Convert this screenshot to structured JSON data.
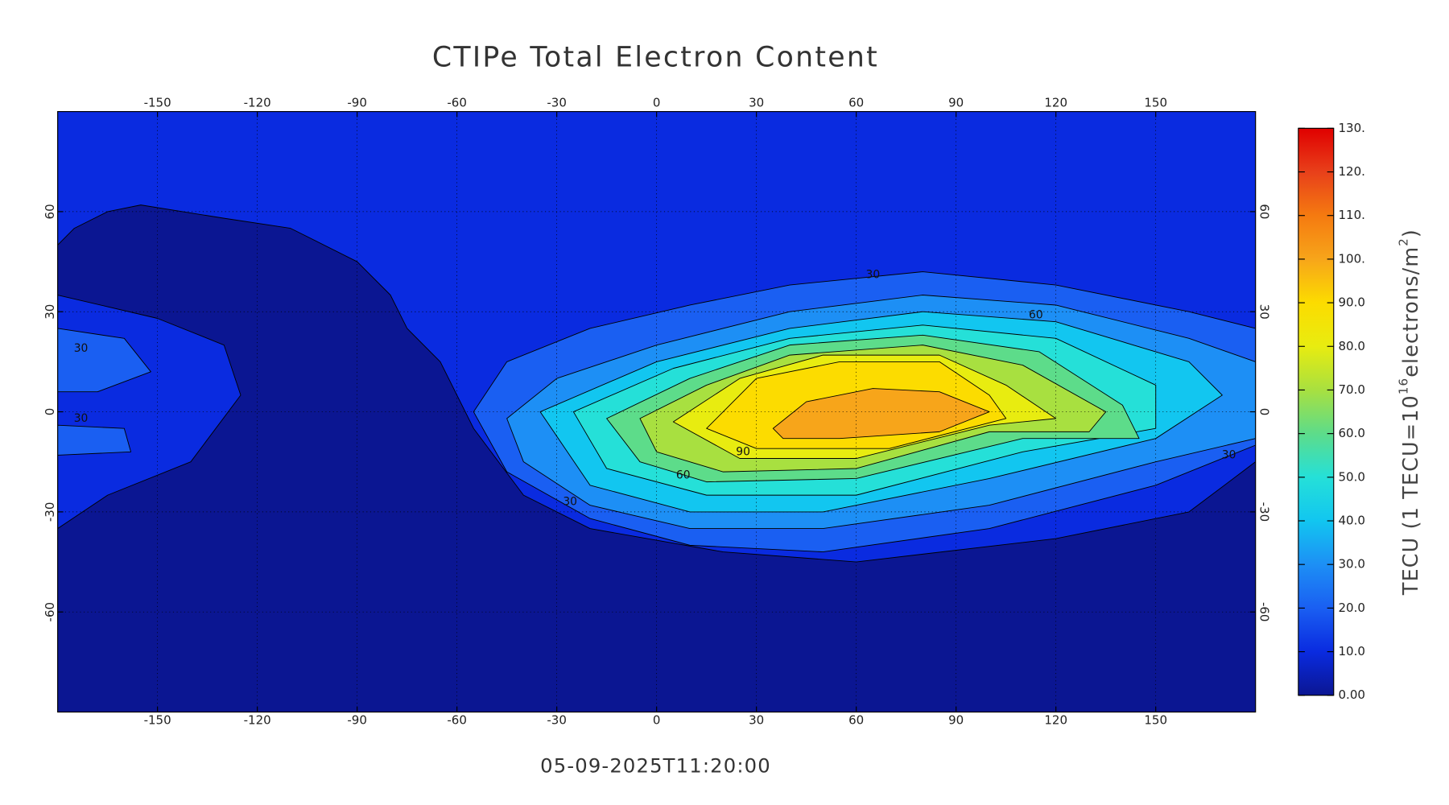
{
  "chart_data": {
    "type": "contour-map",
    "title": "CTIPe Total Electron Content",
    "subtitle": "05-09-2025T11:20:00",
    "xlim": [
      -180,
      180
    ],
    "ylim": [
      -90,
      90
    ],
    "xticks": [
      -150,
      -120,
      -90,
      -60,
      -30,
      0,
      30,
      60,
      90,
      120,
      150
    ],
    "yticks": [
      -60,
      -30,
      0,
      30,
      60
    ],
    "grid": true,
    "contour_levels": [
      10,
      20,
      30,
      40,
      50,
      60,
      70,
      80,
      90,
      100
    ],
    "contour_labels": [
      {
        "value": 30,
        "lon": -173,
        "lat": 19
      },
      {
        "value": 30,
        "lon": -173,
        "lat": -2
      },
      {
        "value": 30,
        "lon": 65,
        "lat": 41
      },
      {
        "value": 60,
        "lon": 114,
        "lat": 29
      },
      {
        "value": 90,
        "lon": 26,
        "lat": -12
      },
      {
        "value": 60,
        "lon": 8,
        "lat": -19
      },
      {
        "value": 30,
        "lon": -26,
        "lat": -27
      },
      {
        "value": 30,
        "lon": 172,
        "lat": -13
      }
    ],
    "colorbar": {
      "lim": [
        0,
        130
      ],
      "ticks": [
        {
          "value": 0,
          "label": "0.00"
        },
        {
          "value": 10,
          "label": "10.0"
        },
        {
          "value": 20,
          "label": "20.0"
        },
        {
          "value": 30,
          "label": "30.0"
        },
        {
          "value": 40,
          "label": "40.0"
        },
        {
          "value": 50,
          "label": "50.0"
        },
        {
          "value": 60,
          "label": "60.0"
        },
        {
          "value": 70,
          "label": "70.0"
        },
        {
          "value": 80,
          "label": "80.0"
        },
        {
          "value": 90,
          "label": "90.0"
        },
        {
          "value": 100,
          "label": "100."
        },
        {
          "value": 110,
          "label": "110."
        },
        {
          "value": 120,
          "label": "120."
        },
        {
          "value": 130,
          "label": "130."
        }
      ],
      "colors": [
        "#0b1692",
        "#0a2be0",
        "#1a5ff2",
        "#1d8ff5",
        "#12c6f0",
        "#25e0d8",
        "#5ddc8a",
        "#a8e040",
        "#e8ec10",
        "#fcdc00",
        "#f7a51a",
        "#f57a10",
        "#e8401a",
        "#e00000"
      ],
      "label_parts": [
        "TECU (1 TECU=10",
        "16",
        "electrons/m",
        "2",
        ")"
      ]
    }
  }
}
